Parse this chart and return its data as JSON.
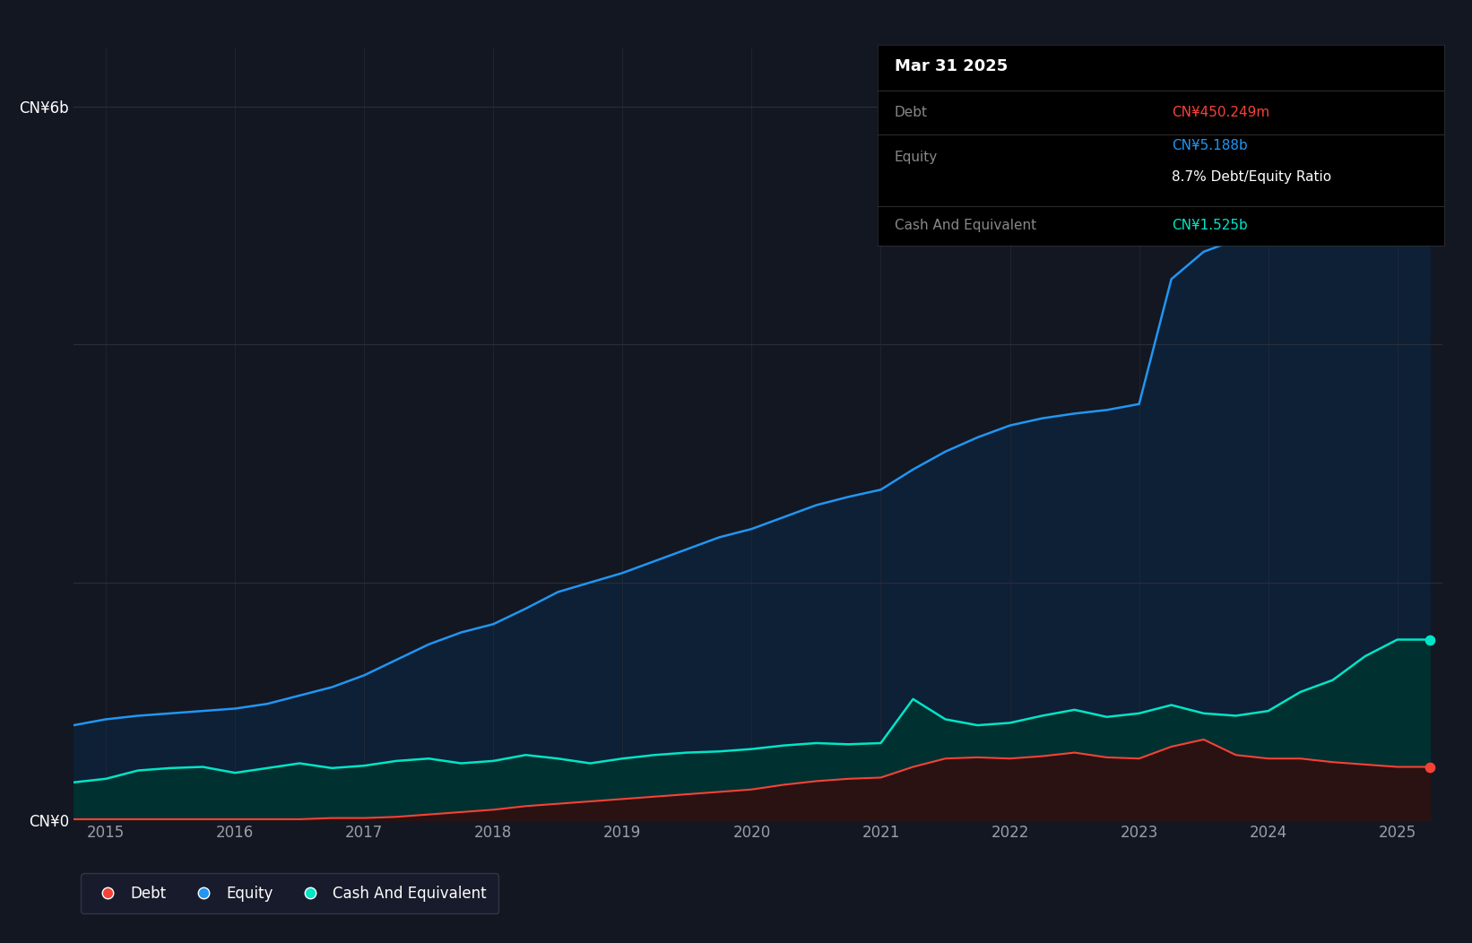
{
  "background_color": "#131722",
  "chart_bg_color": "#131722",
  "equity_color": "#2196f3",
  "debt_color": "#f44336",
  "cash_color": "#00e5c8",
  "tooltip": {
    "date": "Mar 31 2025",
    "debt_label": "Debt",
    "debt_value": "CN¥450.249m",
    "equity_label": "Equity",
    "equity_value": "CN¥5.188b",
    "ratio": "8.7% Debt/Equity Ratio",
    "cash_label": "Cash And Equivalent",
    "cash_value": "CN¥1.525b"
  },
  "legend": [
    {
      "label": "Debt",
      "color": "#f44336"
    },
    {
      "label": "Equity",
      "color": "#2196f3"
    },
    {
      "label": "Cash And Equivalent",
      "color": "#00e5c8"
    }
  ],
  "equity_data": {
    "years": [
      2014.75,
      2015.0,
      2015.25,
      2015.5,
      2015.75,
      2016.0,
      2016.25,
      2016.5,
      2016.75,
      2017.0,
      2017.25,
      2017.5,
      2017.75,
      2018.0,
      2018.25,
      2018.5,
      2018.75,
      2019.0,
      2019.25,
      2019.5,
      2019.75,
      2020.0,
      2020.25,
      2020.5,
      2020.75,
      2021.0,
      2021.25,
      2021.5,
      2021.75,
      2022.0,
      2022.25,
      2022.5,
      2022.75,
      2023.0,
      2023.25,
      2023.5,
      2023.75,
      2024.0,
      2024.25,
      2024.5,
      2024.75,
      2025.0,
      2025.25
    ],
    "values": [
      0.8,
      0.85,
      0.88,
      0.9,
      0.92,
      0.94,
      0.98,
      1.05,
      1.12,
      1.22,
      1.35,
      1.48,
      1.58,
      1.65,
      1.78,
      1.92,
      2.0,
      2.08,
      2.18,
      2.28,
      2.38,
      2.45,
      2.55,
      2.65,
      2.72,
      2.78,
      2.95,
      3.1,
      3.22,
      3.32,
      3.38,
      3.42,
      3.45,
      3.5,
      4.55,
      4.78,
      4.88,
      4.95,
      5.05,
      5.12,
      5.17,
      5.19,
      5.19
    ]
  },
  "cash_data": {
    "years": [
      2014.75,
      2015.0,
      2015.25,
      2015.5,
      2015.75,
      2016.0,
      2016.25,
      2016.5,
      2016.75,
      2017.0,
      2017.25,
      2017.5,
      2017.75,
      2018.0,
      2018.25,
      2018.5,
      2018.75,
      2019.0,
      2019.25,
      2019.5,
      2019.75,
      2020.0,
      2020.25,
      2020.5,
      2020.75,
      2021.0,
      2021.25,
      2021.5,
      2021.75,
      2022.0,
      2022.25,
      2022.5,
      2022.75,
      2023.0,
      2023.25,
      2023.5,
      2023.75,
      2024.0,
      2024.25,
      2024.5,
      2024.75,
      2025.0,
      2025.25
    ],
    "values": [
      0.32,
      0.35,
      0.42,
      0.44,
      0.45,
      0.4,
      0.44,
      0.48,
      0.44,
      0.46,
      0.5,
      0.52,
      0.48,
      0.5,
      0.55,
      0.52,
      0.48,
      0.52,
      0.55,
      0.57,
      0.58,
      0.6,
      0.63,
      0.65,
      0.64,
      0.65,
      1.02,
      0.85,
      0.8,
      0.82,
      0.88,
      0.93,
      0.87,
      0.9,
      0.97,
      0.9,
      0.88,
      0.92,
      1.08,
      1.18,
      1.38,
      1.52,
      1.52
    ]
  },
  "debt_data": {
    "years": [
      2014.75,
      2015.0,
      2015.25,
      2015.5,
      2015.75,
      2016.0,
      2016.25,
      2016.5,
      2016.75,
      2017.0,
      2017.25,
      2017.5,
      2017.75,
      2018.0,
      2018.25,
      2018.5,
      2018.75,
      2019.0,
      2019.25,
      2019.5,
      2019.75,
      2020.0,
      2020.25,
      2020.5,
      2020.75,
      2021.0,
      2021.25,
      2021.5,
      2021.75,
      2022.0,
      2022.25,
      2022.5,
      2022.75,
      2023.0,
      2023.25,
      2023.5,
      2023.75,
      2024.0,
      2024.25,
      2024.5,
      2024.75,
      2025.0,
      2025.25
    ],
    "values": [
      0.01,
      0.01,
      0.01,
      0.01,
      0.01,
      0.01,
      0.01,
      0.01,
      0.02,
      0.02,
      0.03,
      0.05,
      0.07,
      0.09,
      0.12,
      0.14,
      0.16,
      0.18,
      0.2,
      0.22,
      0.24,
      0.26,
      0.3,
      0.33,
      0.35,
      0.36,
      0.45,
      0.52,
      0.53,
      0.52,
      0.54,
      0.57,
      0.53,
      0.52,
      0.62,
      0.68,
      0.55,
      0.52,
      0.52,
      0.49,
      0.47,
      0.45,
      0.45
    ]
  },
  "ylim": [
    0,
    6.5
  ],
  "xlim": [
    2014.75,
    2025.35
  ],
  "x_ticks": [
    2015,
    2016,
    2017,
    2018,
    2019,
    2020,
    2021,
    2022,
    2023,
    2024,
    2025
  ],
  "grid_color": "#2a2e39",
  "ytick_positions": [
    0,
    2,
    4,
    6
  ],
  "ytick_labels": [
    "CN¥0",
    "",
    "",
    "CN¥6b"
  ]
}
